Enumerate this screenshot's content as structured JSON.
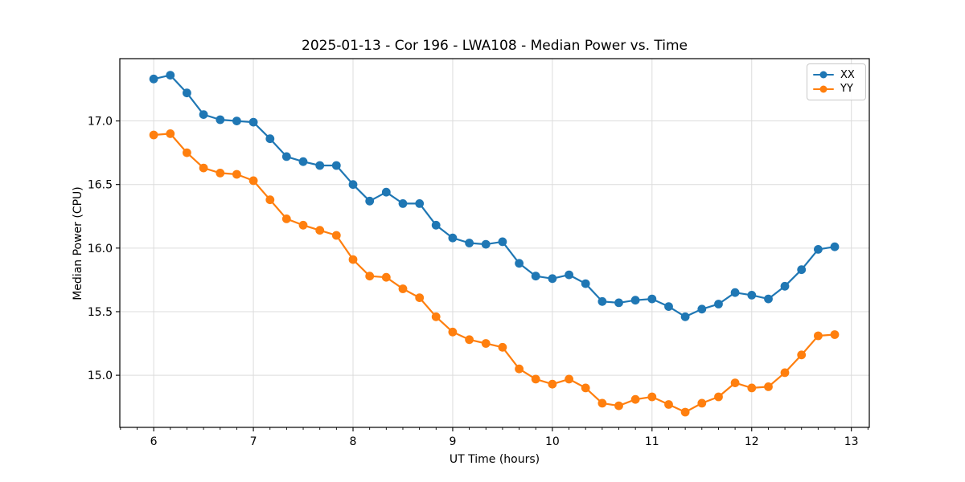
{
  "chart_data": {
    "type": "line",
    "title": "2025-01-13 - Cor 196 - LWA108 - Median Power vs. Time",
    "xlabel": "UT Time (hours)",
    "ylabel": "Median Power (CPU)",
    "xlim": [
      5.66,
      13.18
    ],
    "ylim": [
      14.59,
      17.49
    ],
    "xticks": [
      6,
      7,
      8,
      9,
      10,
      11,
      12,
      13
    ],
    "xtick_labels": [
      "6",
      "7",
      "8",
      "9",
      "10",
      "11",
      "12",
      "13"
    ],
    "yticks": [
      15.0,
      15.5,
      16.0,
      16.5,
      17.0
    ],
    "ytick_labels": [
      "15.0",
      "15.5",
      "16.0",
      "16.5",
      "17.0"
    ],
    "minor_xtick_interval": 0.1667,
    "grid": true,
    "legend_position": "upper right",
    "x": [
      6.0,
      6.167,
      6.333,
      6.5,
      6.667,
      6.833,
      7.0,
      7.167,
      7.333,
      7.5,
      7.667,
      7.833,
      8.0,
      8.167,
      8.333,
      8.5,
      8.667,
      8.833,
      9.0,
      9.167,
      9.333,
      9.5,
      9.667,
      9.833,
      10.0,
      10.167,
      10.333,
      10.5,
      10.667,
      10.833,
      11.0,
      11.167,
      11.333,
      11.5,
      11.667,
      11.833,
      12.0,
      12.167,
      12.333,
      12.5,
      12.667,
      12.833
    ],
    "series": [
      {
        "name": "XX",
        "color": "#1f77b4",
        "values": [
          17.33,
          17.36,
          17.22,
          17.05,
          17.01,
          17.0,
          16.99,
          16.86,
          16.72,
          16.68,
          16.65,
          16.65,
          16.5,
          16.37,
          16.44,
          16.35,
          16.35,
          16.18,
          16.08,
          16.04,
          16.03,
          16.05,
          15.88,
          15.78,
          15.76,
          15.79,
          15.72,
          15.58,
          15.57,
          15.59,
          15.6,
          15.54,
          15.46,
          15.52,
          15.56,
          15.65,
          15.63,
          15.6,
          15.7,
          15.83,
          15.99,
          16.01
        ]
      },
      {
        "name": "YY",
        "color": "#ff7f0e",
        "values": [
          16.89,
          16.9,
          16.75,
          16.63,
          16.59,
          16.58,
          16.53,
          16.38,
          16.23,
          16.18,
          16.14,
          16.1,
          15.91,
          15.78,
          15.77,
          15.68,
          15.61,
          15.46,
          15.34,
          15.28,
          15.25,
          15.22,
          15.05,
          14.97,
          14.93,
          14.97,
          14.9,
          14.78,
          14.76,
          14.81,
          14.83,
          14.77,
          14.71,
          14.78,
          14.83,
          14.94,
          14.9,
          14.91,
          15.02,
          15.16,
          15.31,
          15.32
        ]
      }
    ],
    "style": {
      "grid_color": "#dcdcdc",
      "spine_color": "#000000",
      "background_color": "#ffffff",
      "legend_edge_color": "#c9c9c9"
    }
  }
}
